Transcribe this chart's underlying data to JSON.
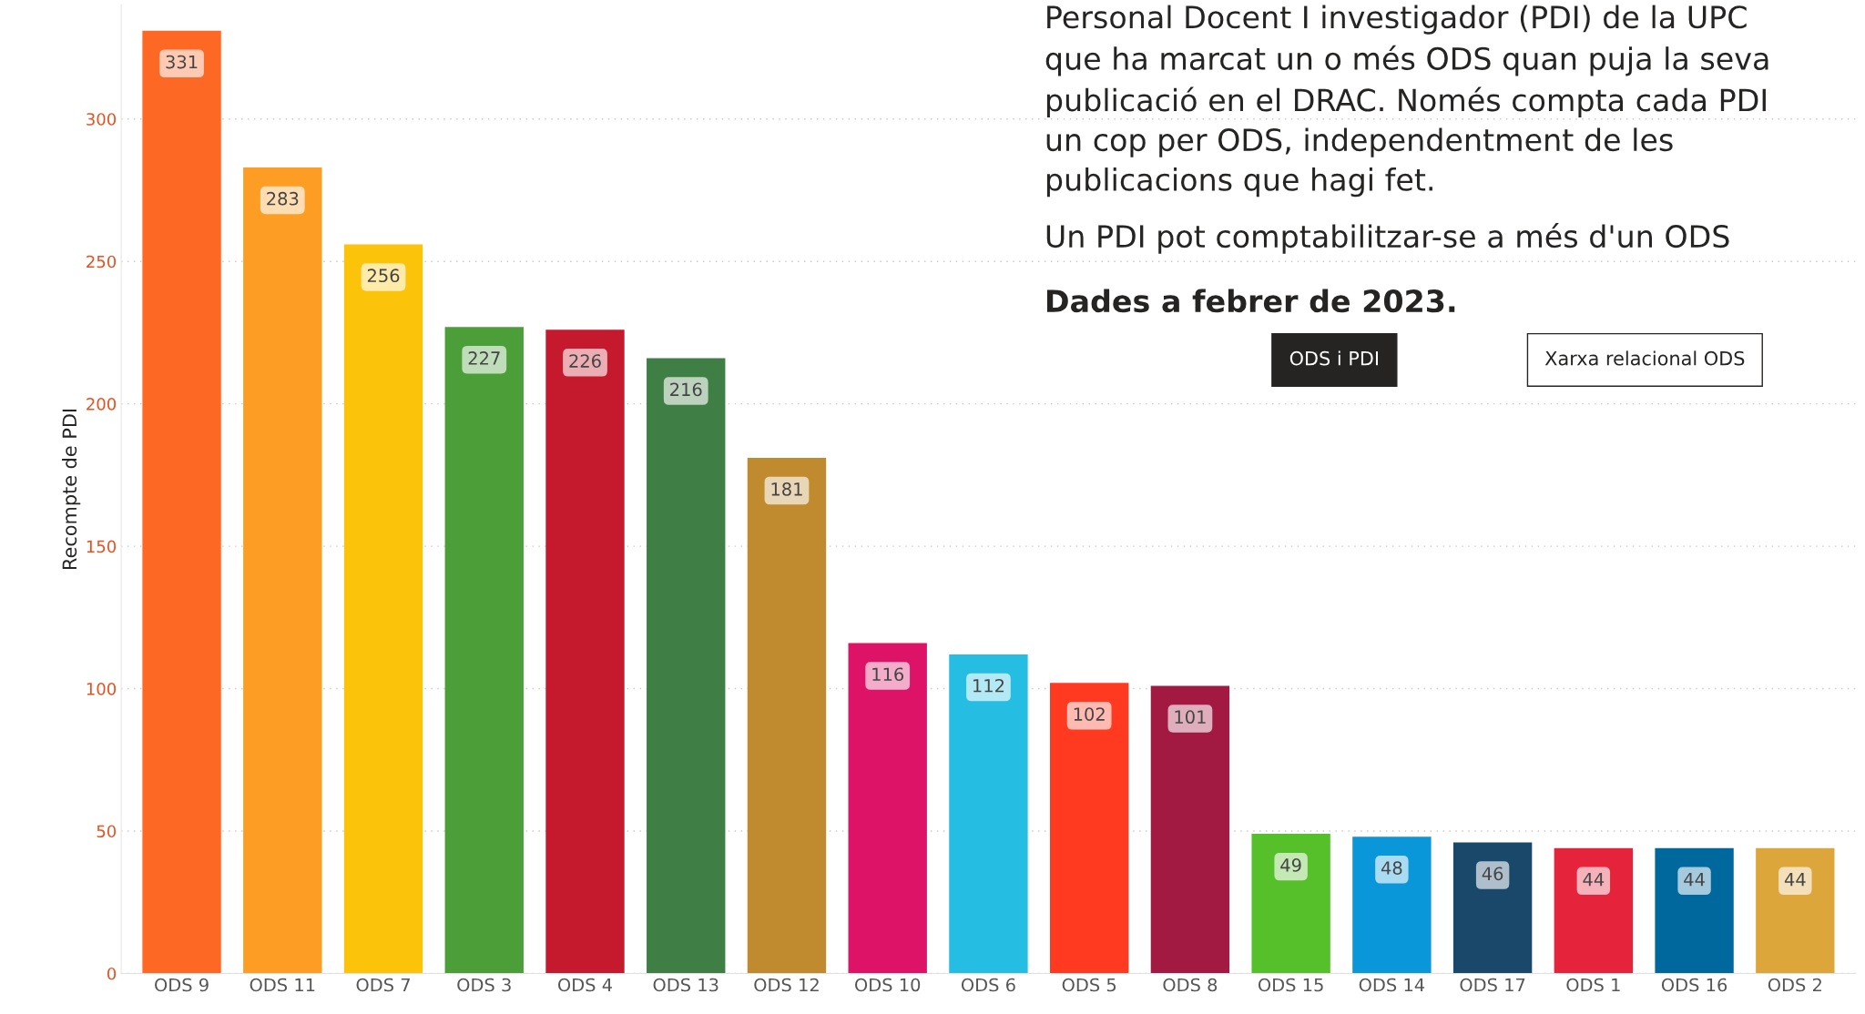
{
  "chart_data": {
    "type": "bar",
    "title": "Personal Docent I investigador (PDI) de la UPC que ha marcat un o més ODS quan puja la seva publicació en el DRAC. Només compta cada PDI un cop per ODS, independentment de les publicacions que hagi fet.",
    "subtitle": "Un PDI pot comptabilitzar-se a més d'un ODS",
    "annotations": [
      "Dades a febrer de 2023.",
      "ODS i PDI",
      "Xarxa relacional ODS"
    ],
    "ylabel": "Recompte de PDI",
    "categories": [
      "ODS 9",
      "ODS 11",
      "ODS 7",
      "ODS 3",
      "ODS 4",
      "ODS 13",
      "ODS 12",
      "ODS 10",
      "ODS 6",
      "ODS 5",
      "ODS 8",
      "ODS 15",
      "ODS 14",
      "ODS 17",
      "ODS 1",
      "ODS 16",
      "ODS 2"
    ],
    "values": [
      331,
      283,
      256,
      227,
      226,
      216,
      181,
      116,
      112,
      102,
      101,
      49,
      48,
      46,
      44,
      44,
      44
    ],
    "colors": [
      "#fd6925",
      "#fd9d24",
      "#fcc30b",
      "#4c9f38",
      "#c5192d",
      "#3f7e44",
      "#bf8b2e",
      "#dd1367",
      "#26bde2",
      "#ff3a21",
      "#a21942",
      "#56c02b",
      "#0a97d9",
      "#19486a",
      "#e5243b",
      "#00689d",
      "#dda63a"
    ],
    "ylim": [
      0,
      340
    ],
    "yticks": [
      0,
      50,
      100,
      150,
      200,
      250,
      300
    ],
    "grid": "y",
    "data_labels": true
  }
}
